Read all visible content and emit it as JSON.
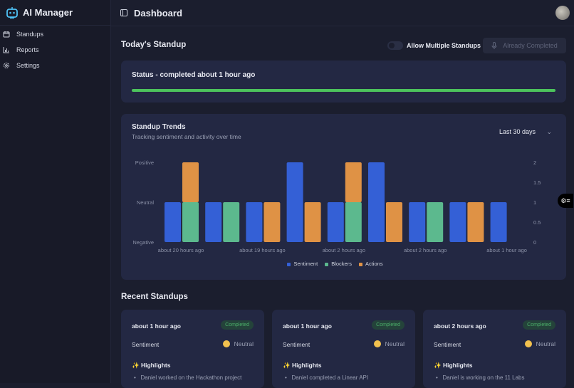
{
  "app": {
    "name": "AI Manager"
  },
  "sidebar": {
    "items": [
      {
        "label": "Standups",
        "icon": "calendar-icon"
      },
      {
        "label": "Reports",
        "icon": "bar-chart-icon"
      },
      {
        "label": "Settings",
        "icon": "gear-icon"
      }
    ]
  },
  "header": {
    "title": "Dashboard"
  },
  "today": {
    "title": "Today's Standup",
    "toggle_label": "Allow Multiple Standups",
    "toggle_on": false,
    "button_label": "Already Completed",
    "status": "Status - completed about 1 hour ago",
    "progress": 100
  },
  "colors": {
    "sentiment": "#3460d6",
    "blockers": "#5cb98e",
    "actions": "#df9245",
    "progress": "#4cc35c"
  },
  "trends": {
    "title": "Standup Trends",
    "subtitle": "Tracking sentiment and activity over time",
    "range": "Last 30 days"
  },
  "chart_data": {
    "type": "bar",
    "categories": [
      "about 20 hours ago",
      "",
      "about 19 hours ago",
      "",
      "about 2 hours ago",
      "",
      "about 2 hours ago",
      "",
      "about 1 hour ago"
    ],
    "left_axis": {
      "ticks": [
        "Negative",
        "Neutral",
        "Positive"
      ]
    },
    "right_axis": {
      "ticks": [
        "0",
        "0.5",
        "1",
        "1.5",
        "2"
      ],
      "ylim": [
        0,
        2
      ]
    },
    "series": [
      {
        "name": "Sentiment",
        "values": [
          "Neutral",
          "Neutral",
          "Neutral",
          "Positive",
          "Neutral",
          "Positive",
          "Neutral",
          "Neutral",
          "Neutral"
        ]
      },
      {
        "name": "Blockers",
        "values": [
          1,
          1,
          0,
          0,
          1,
          0,
          1,
          0,
          0
        ]
      },
      {
        "name": "Actions",
        "values": [
          1,
          0,
          1,
          1,
          1,
          1,
          0,
          1,
          0
        ]
      }
    ],
    "stacked": [
      "Blockers",
      "Actions"
    ],
    "legend": "bottom"
  },
  "recent": {
    "title": "Recent Standups",
    "cards": [
      {
        "time": "about 1 hour ago",
        "status": "Completed",
        "sentiment_label": "Sentiment",
        "sentiment": "Neutral",
        "highlights_title": "✨ Highlights",
        "highlight": "Daniel worked on the Hackathon project"
      },
      {
        "time": "about 1 hour ago",
        "status": "Completed",
        "sentiment_label": "Sentiment",
        "sentiment": "Neutral",
        "highlights_title": "✨ Highlights",
        "highlight": "Daniel completed a Linear API"
      },
      {
        "time": "about 2 hours ago",
        "status": "Completed",
        "sentiment_label": "Sentiment",
        "sentiment": "Neutral",
        "highlights_title": "✨ Highlights",
        "highlight": "Daniel is working on the 11 Labs"
      }
    ]
  }
}
